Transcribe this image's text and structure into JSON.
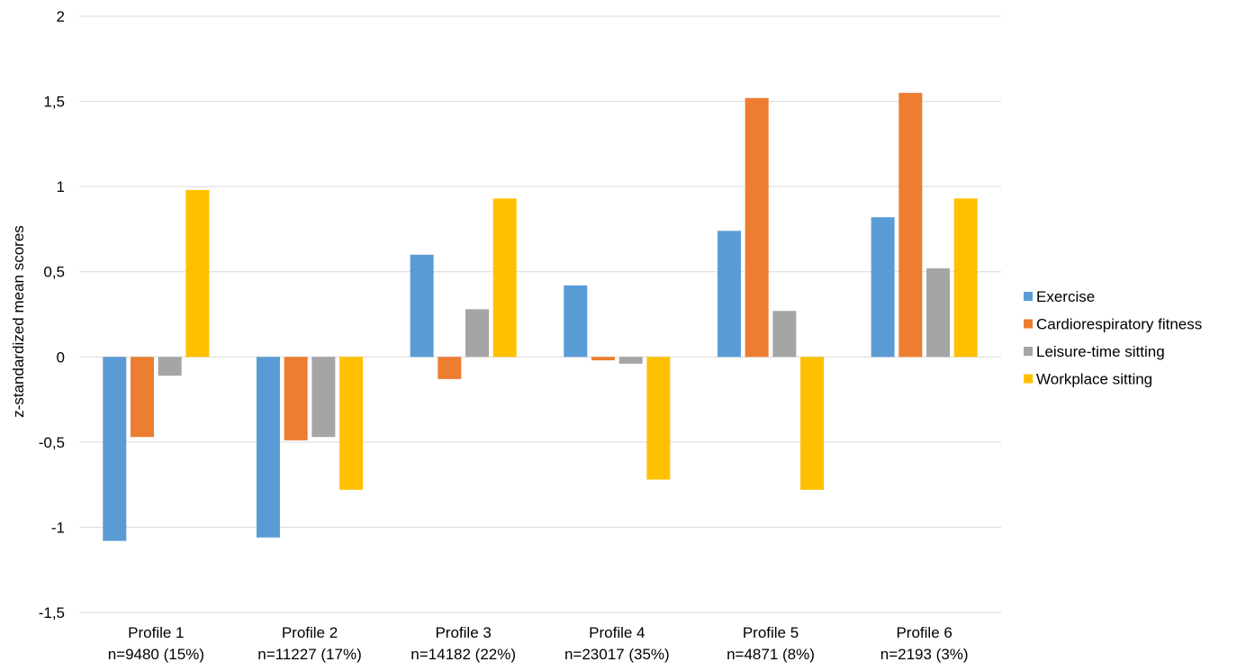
{
  "chart_data": {
    "type": "bar",
    "title": "",
    "xlabel": "",
    "ylabel": "z-standardized mean scores",
    "ylim": [
      -1.5,
      2
    ],
    "yticks": [
      2,
      1.5,
      1,
      0.5,
      0,
      -0.5,
      -1,
      -1.5
    ],
    "ytick_labels": [
      "2",
      "1,5",
      "1",
      "0,5",
      "0",
      "-0,5",
      "-1",
      "-1,5"
    ],
    "grid": true,
    "legend_position": "right",
    "categories": [
      {
        "name": "Profile 1",
        "sub": "n=9480 (15%)"
      },
      {
        "name": "Profile 2",
        "sub": "n=11227 (17%)"
      },
      {
        "name": "Profile 3",
        "sub": "n=14182 (22%)"
      },
      {
        "name": "Profile 4",
        "sub": "n=23017 (35%)"
      },
      {
        "name": "Profile 5",
        "sub": "n=4871 (8%)"
      },
      {
        "name": "Profile 6",
        "sub": "n=2193 (3%)"
      }
    ],
    "series": [
      {
        "name": "Exercise",
        "color": "#5b9bd5",
        "values": [
          -1.08,
          -1.06,
          0.6,
          0.42,
          0.74,
          0.82
        ]
      },
      {
        "name": "Cardiorespiratory fitness",
        "color": "#ed7d31",
        "values": [
          -0.47,
          -0.49,
          -0.13,
          -0.02,
          1.52,
          1.55
        ]
      },
      {
        "name": "Leisure-time sitting",
        "color": "#a5a5a5",
        "values": [
          -0.11,
          -0.47,
          0.28,
          -0.04,
          0.27,
          0.52
        ]
      },
      {
        "name": "Workplace sitting",
        "color": "#ffc000",
        "values": [
          0.98,
          -0.78,
          0.93,
          -0.72,
          -0.78,
          0.93
        ]
      }
    ]
  }
}
